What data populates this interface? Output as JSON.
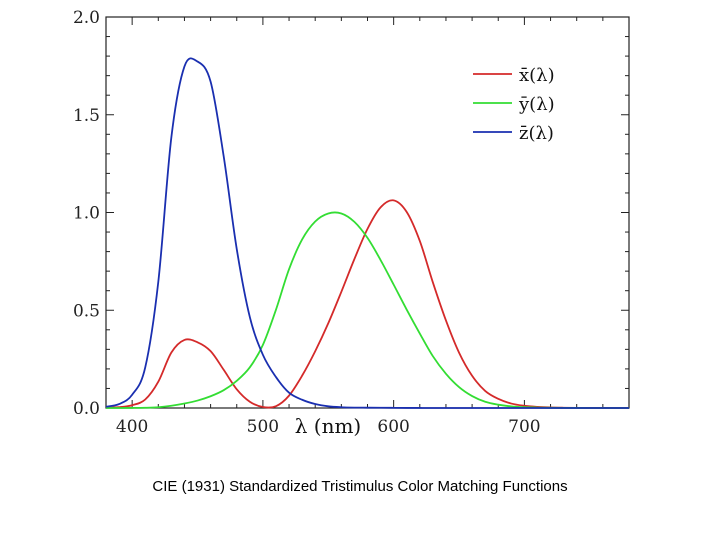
{
  "caption": "CIE (1931) Standardized Tristimulus Color Matching Functions",
  "chart_data": {
    "type": "line",
    "title": "",
    "xlabel": "λ (nm)",
    "ylabel": "",
    "xlim": [
      380,
      780
    ],
    "ylim": [
      0,
      2.0
    ],
    "xticks": [
      400,
      500,
      600,
      700
    ],
    "yticks": [
      0.0,
      0.5,
      1.0,
      1.5,
      2.0
    ],
    "ytick_labels": [
      "0.0",
      "0.5",
      "1.0",
      "1.5",
      "2.0"
    ],
    "legend_position": "top-right",
    "grid": false,
    "x": [
      380,
      390,
      400,
      410,
      420,
      430,
      440,
      450,
      460,
      470,
      480,
      490,
      500,
      510,
      520,
      530,
      540,
      550,
      560,
      570,
      580,
      590,
      600,
      610,
      620,
      630,
      640,
      650,
      660,
      670,
      680,
      690,
      700,
      710,
      720,
      730,
      740,
      750,
      760,
      770,
      780
    ],
    "series": [
      {
        "name": "x̄(λ)",
        "color": "#d42a2a",
        "values": [
          0.0014,
          0.0042,
          0.0143,
          0.0435,
          0.1344,
          0.2839,
          0.3483,
          0.3362,
          0.2908,
          0.1954,
          0.0956,
          0.032,
          0.0049,
          0.0093,
          0.0633,
          0.1655,
          0.2904,
          0.4334,
          0.5945,
          0.7621,
          0.9163,
          1.0263,
          1.0622,
          1.0026,
          0.8544,
          0.6424,
          0.4479,
          0.2835,
          0.1649,
          0.0874,
          0.0468,
          0.0227,
          0.0114,
          0.0058,
          0.0029,
          0.0014,
          0.0007,
          0.0003,
          0.0002,
          0.0001,
          0.0
        ]
      },
      {
        "name": "ȳ(λ)",
        "color": "#33dd33",
        "values": [
          0.0,
          0.0001,
          0.0004,
          0.0012,
          0.004,
          0.0116,
          0.023,
          0.038,
          0.06,
          0.091,
          0.139,
          0.208,
          0.323,
          0.503,
          0.71,
          0.862,
          0.954,
          0.995,
          0.995,
          0.952,
          0.87,
          0.757,
          0.631,
          0.503,
          0.381,
          0.265,
          0.175,
          0.107,
          0.061,
          0.032,
          0.017,
          0.0082,
          0.0041,
          0.0021,
          0.001,
          0.0005,
          0.0003,
          0.0001,
          0.0001,
          0.0,
          0.0
        ]
      },
      {
        "name": "z̄(λ)",
        "color": "#1a2fb0",
        "values": [
          0.0065,
          0.0201,
          0.0679,
          0.2074,
          0.6456,
          1.3856,
          1.7471,
          1.7721,
          1.6692,
          1.2876,
          0.813,
          0.4652,
          0.272,
          0.1582,
          0.0782,
          0.0422,
          0.0203,
          0.0087,
          0.0039,
          0.0021,
          0.0017,
          0.0011,
          0.0008,
          0.0003,
          0.0002,
          0.0,
          0.0,
          0.0,
          0.0,
          0.0,
          0.0,
          0.0,
          0.0,
          0.0,
          0.0,
          0.0,
          0.0,
          0.0,
          0.0,
          0.0,
          0.0
        ]
      }
    ]
  }
}
